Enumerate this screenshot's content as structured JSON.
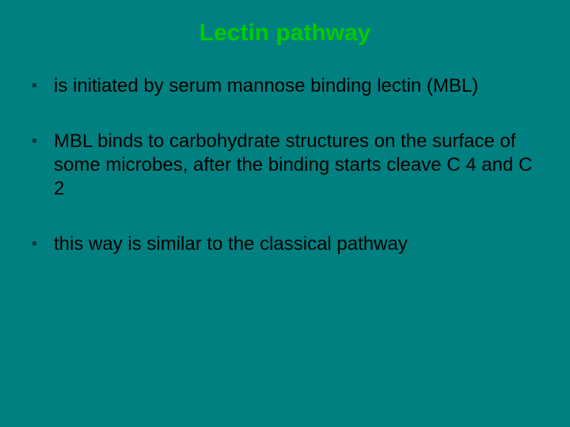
{
  "background_color": "#008080",
  "title_color": "#00cc00",
  "bullet_marker_color": "#003333",
  "body_text_color": "#000000",
  "title_fontsize": 30,
  "body_fontsize": 24,
  "title": "Lectin pathway",
  "bullets": [
    "is initiated by serum mannose  binding lectin (MBL)",
    " MBL binds to carbohydrate structures on the surface of some microbes, after the binding starts cleave C 4 and C 2",
    "this way is similar to the classical pathway"
  ]
}
